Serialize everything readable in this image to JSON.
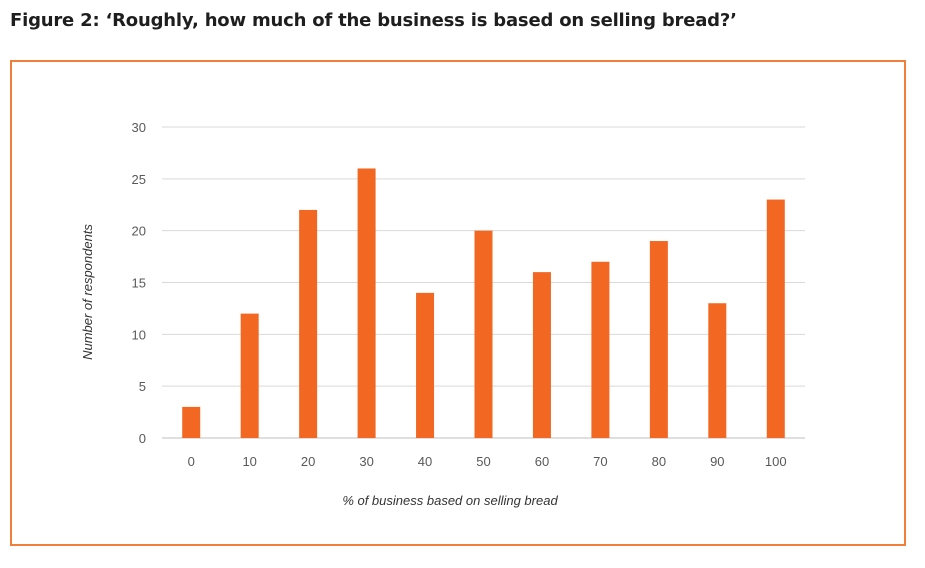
{
  "chart_data": {
    "type": "bar",
    "title": "Figure 2: ‘Roughly, how much of the business is based on selling bread?’",
    "categories": [
      "0",
      "10",
      "20",
      "30",
      "40",
      "50",
      "60",
      "70",
      "80",
      "90",
      "100"
    ],
    "values": [
      3,
      12,
      22,
      26,
      14,
      20,
      16,
      17,
      19,
      13,
      23
    ],
    "xlabel": "% of business based on selling bread",
    "ylabel": "Number of respondents",
    "ylim": [
      0,
      30
    ],
    "yticks": [
      0,
      5,
      10,
      15,
      20,
      25,
      30
    ],
    "grid": true,
    "bar_color": "#f26722",
    "frame_color": "#f07f3c"
  }
}
